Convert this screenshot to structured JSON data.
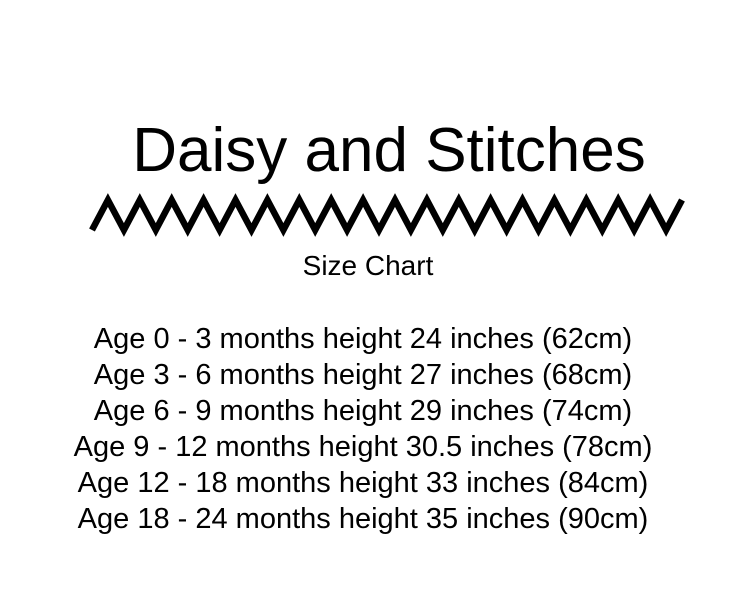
{
  "page": {
    "background": "#ffffff",
    "text_color": "#000000"
  },
  "header": {
    "brand": "Daisy and Stitches",
    "subtitle": "Size Chart",
    "divider": "zigzag-line"
  },
  "size_table": {
    "rows": [
      {
        "text": "Age 0 - 3 months height 24 inches (62cm)",
        "age_range": "0 - 3 months",
        "height_inches": "24",
        "height_cm": "62"
      },
      {
        "text": "Age 3 - 6 months height 27 inches (68cm)",
        "age_range": "3 - 6 months",
        "height_inches": "27",
        "height_cm": "68"
      },
      {
        "text": "Age 6 - 9 months height 29 inches (74cm)",
        "age_range": "6 - 9 months",
        "height_inches": "29",
        "height_cm": "74"
      },
      {
        "text": "Age 9 - 12 months height 30.5 inches (78cm)",
        "age_range": "9 - 12 months",
        "height_inches": "30.5",
        "height_cm": "78"
      },
      {
        "text": "Age 12 - 18 months height 33 inches (84cm)",
        "age_range": "12 - 18 months",
        "height_inches": "33",
        "height_cm": "84"
      },
      {
        "text": "Age 18 - 24 months height 35 inches (90cm)",
        "age_range": "18 - 24 months",
        "height_inches": "35",
        "height_cm": "90"
      }
    ]
  }
}
